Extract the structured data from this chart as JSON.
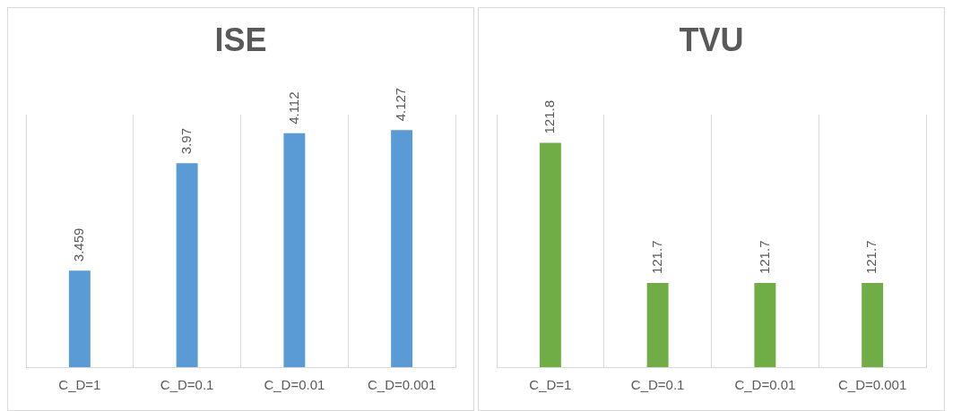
{
  "chart_data": [
    {
      "type": "bar",
      "title": "ISE",
      "categories": [
        "C_D=1",
        "C_D=0.1",
        "C_D=0.01",
        "C_D=0.001"
      ],
      "values": [
        3.459,
        3.97,
        4.112,
        4.127
      ],
      "color": "#5b9bd5",
      "ylim": [
        3.0,
        4.2
      ],
      "data_labels": true,
      "grid": "x",
      "legend": false,
      "tick_labels": "x"
    },
    {
      "type": "bar",
      "title": "TVU",
      "categories": [
        "C_D=1",
        "C_D=0.1",
        "C_D=0.01",
        "C_D=0.001"
      ],
      "values": [
        121.8,
        121.7,
        121.7,
        121.7
      ],
      "color": "#70ad47",
      "ylim": [
        121.64,
        121.82
      ],
      "data_labels": true,
      "grid": "x",
      "legend": false,
      "tick_labels": "x"
    }
  ]
}
